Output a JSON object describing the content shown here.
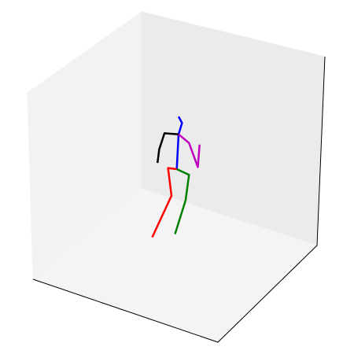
{
  "chart_data": {
    "type": "line3d",
    "xlim": [
      0,
      1
    ],
    "ylim": [
      0,
      1
    ],
    "zlim": [
      0,
      1
    ],
    "series": [
      {
        "color": "#0000ff",
        "x": [
          0.5,
          0.5,
          0.5,
          0.5
        ],
        "y": [
          0.52,
          0.54,
          0.52,
          0.51
        ],
        "z": [
          0.83,
          0.8,
          0.73,
          0.53
        ]
      },
      {
        "color": "#000000",
        "x": [
          0.5,
          0.5,
          0.5,
          0.5
        ],
        "y": [
          0.52,
          0.44,
          0.41,
          0.4
        ],
        "z": [
          0.73,
          0.71,
          0.61,
          0.53
        ]
      },
      {
        "color": "#bf00bf",
        "x": [
          0.5,
          0.5,
          0.5,
          0.5
        ],
        "y": [
          0.52,
          0.58,
          0.63,
          0.64
        ],
        "z": [
          0.73,
          0.7,
          0.58,
          0.71
        ]
      },
      {
        "color": "#ff0000",
        "x": [
          0.5,
          0.5,
          0.5,
          0.5
        ],
        "y": [
          0.51,
          0.46,
          0.48,
          0.37
        ],
        "z": [
          0.53,
          0.52,
          0.37,
          0.1
        ]
      },
      {
        "color": "#008000",
        "x": [
          0.5,
          0.5,
          0.5,
          0.5
        ],
        "y": [
          0.51,
          0.58,
          0.56,
          0.5
        ],
        "z": [
          0.53,
          0.52,
          0.37,
          0.16
        ]
      }
    ]
  }
}
